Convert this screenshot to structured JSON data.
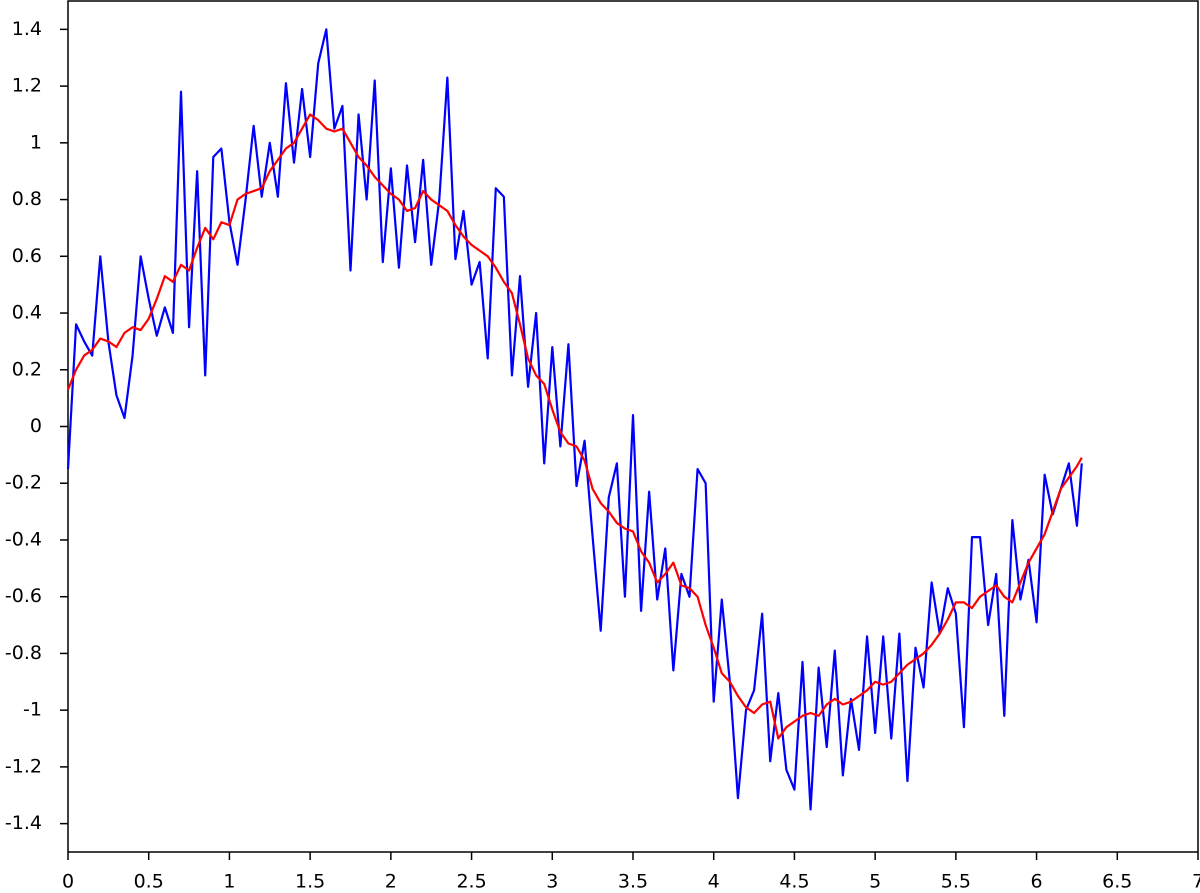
{
  "chart_data": {
    "type": "line",
    "x": [
      0,
      0.05,
      0.1,
      0.15,
      0.2,
      0.25,
      0.3,
      0.35,
      0.4,
      0.45,
      0.5,
      0.55,
      0.6,
      0.65,
      0.7,
      0.75,
      0.8,
      0.85,
      0.9,
      0.95,
      1,
      1.05,
      1.1,
      1.15,
      1.2,
      1.25,
      1.3,
      1.35,
      1.4,
      1.45,
      1.5,
      1.55,
      1.6,
      1.65,
      1.7,
      1.75,
      1.8,
      1.85,
      1.9,
      1.95,
      2,
      2.05,
      2.1,
      2.15,
      2.2,
      2.25,
      2.3,
      2.35,
      2.4,
      2.45,
      2.5,
      2.55,
      2.6,
      2.65,
      2.7,
      2.75,
      2.8,
      2.85,
      2.9,
      2.95,
      3,
      3.05,
      3.1,
      3.15,
      3.2,
      3.25,
      3.3,
      3.35,
      3.4,
      3.45,
      3.5,
      3.55,
      3.6,
      3.65,
      3.7,
      3.75,
      3.8,
      3.85,
      3.9,
      3.95,
      4,
      4.05,
      4.1,
      4.15,
      4.2,
      4.25,
      4.3,
      4.35,
      4.4,
      4.45,
      4.5,
      4.55,
      4.6,
      4.65,
      4.7,
      4.75,
      4.8,
      4.85,
      4.9,
      4.95,
      5,
      5.05,
      5.1,
      5.15,
      5.2,
      5.25,
      5.3,
      5.35,
      5.4,
      5.45,
      5.5,
      5.55,
      5.6,
      5.65,
      5.7,
      5.75,
      5.8,
      5.85,
      5.9,
      5.95,
      6,
      6.05,
      6.1,
      6.15,
      6.2,
      6.25,
      6.28
    ],
    "series": [
      {
        "color": "#0000ff",
        "values": [
          -0.15,
          0.36,
          0.3,
          0.25,
          0.6,
          0.3,
          0.11,
          0.03,
          0.25,
          0.6,
          0.45,
          0.32,
          0.42,
          0.33,
          1.18,
          0.35,
          0.9,
          0.18,
          0.95,
          0.98,
          0.72,
          0.57,
          0.8,
          1.06,
          0.81,
          1.0,
          0.81,
          1.21,
          0.93,
          1.19,
          0.95,
          1.28,
          1.4,
          1.05,
          1.13,
          0.55,
          1.1,
          0.8,
          1.22,
          0.58,
          0.91,
          0.56,
          0.92,
          0.65,
          0.94,
          0.57,
          0.8,
          1.23,
          0.59,
          0.76,
          0.5,
          0.58,
          0.24,
          0.84,
          0.81,
          0.18,
          0.53,
          0.14,
          0.4,
          -0.13,
          0.28,
          -0.07,
          0.29,
          -0.21,
          -0.05,
          -0.39,
          -0.72,
          -0.25,
          -0.13,
          -0.6,
          0.04,
          -0.65,
          -0.23,
          -0.61,
          -0.43,
          -0.86,
          -0.52,
          -0.6,
          -0.15,
          -0.2,
          -0.97,
          -0.61,
          -0.9,
          -1.31,
          -1.0,
          -0.93,
          -0.66,
          -1.18,
          -0.94,
          -1.21,
          -1.28,
          -0.83,
          -1.35,
          -0.85,
          -1.13,
          -0.79,
          -1.23,
          -0.96,
          -1.14,
          -0.74,
          -1.08,
          -0.74,
          -1.1,
          -0.73,
          -1.25,
          -0.78,
          -0.92,
          -0.55,
          -0.73,
          -0.57,
          -0.66,
          -1.06,
          -0.39,
          -0.39,
          -0.7,
          -0.52,
          -1.02,
          -0.33,
          -0.61,
          -0.47,
          -0.69,
          -0.17,
          -0.31,
          -0.22,
          -0.13,
          -0.35,
          -0.13
        ]
      },
      {
        "color": "#ff0000",
        "values": [
          0.13,
          0.2,
          0.25,
          0.27,
          0.31,
          0.3,
          0.28,
          0.33,
          0.35,
          0.34,
          0.38,
          0.45,
          0.53,
          0.51,
          0.57,
          0.55,
          0.63,
          0.7,
          0.66,
          0.72,
          0.71,
          0.8,
          0.82,
          0.83,
          0.84,
          0.9,
          0.94,
          0.98,
          1.0,
          1.05,
          1.1,
          1.08,
          1.05,
          1.04,
          1.05,
          1.0,
          0.95,
          0.92,
          0.88,
          0.85,
          0.82,
          0.8,
          0.76,
          0.77,
          0.83,
          0.8,
          0.78,
          0.76,
          0.71,
          0.67,
          0.64,
          0.62,
          0.6,
          0.56,
          0.51,
          0.47,
          0.36,
          0.24,
          0.18,
          0.15,
          0.06,
          -0.02,
          -0.06,
          -0.07,
          -0.12,
          -0.22,
          -0.27,
          -0.3,
          -0.34,
          -0.36,
          -0.37,
          -0.44,
          -0.48,
          -0.55,
          -0.52,
          -0.48,
          -0.56,
          -0.57,
          -0.6,
          -0.7,
          -0.78,
          -0.87,
          -0.9,
          -0.95,
          -0.99,
          -1.01,
          -0.98,
          -0.97,
          -1.1,
          -1.06,
          -1.04,
          -1.02,
          -1.01,
          -1.02,
          -0.98,
          -0.96,
          -0.98,
          -0.97,
          -0.95,
          -0.93,
          -0.9,
          -0.91,
          -0.9,
          -0.87,
          -0.84,
          -0.82,
          -0.8,
          -0.77,
          -0.73,
          -0.68,
          -0.62,
          -0.62,
          -0.64,
          -0.6,
          -0.58,
          -0.56,
          -0.6,
          -0.62,
          -0.55,
          -0.48,
          -0.43,
          -0.38,
          -0.3,
          -0.22,
          -0.18,
          -0.14,
          -0.11
        ]
      }
    ],
    "xlim": [
      0,
      7
    ],
    "xticks": [
      0,
      0.5,
      1,
      1.5,
      2,
      2.5,
      3,
      3.5,
      4,
      4.5,
      5,
      5.5,
      6,
      6.5,
      7
    ],
    "ylim": [
      -1.5,
      1.5
    ],
    "yticks": [
      -1.4,
      -1.2,
      -1,
      -0.8,
      -0.6,
      -0.4,
      -0.2,
      0,
      0.2,
      0.4,
      0.6,
      0.8,
      1,
      1.2,
      1.4
    ]
  }
}
